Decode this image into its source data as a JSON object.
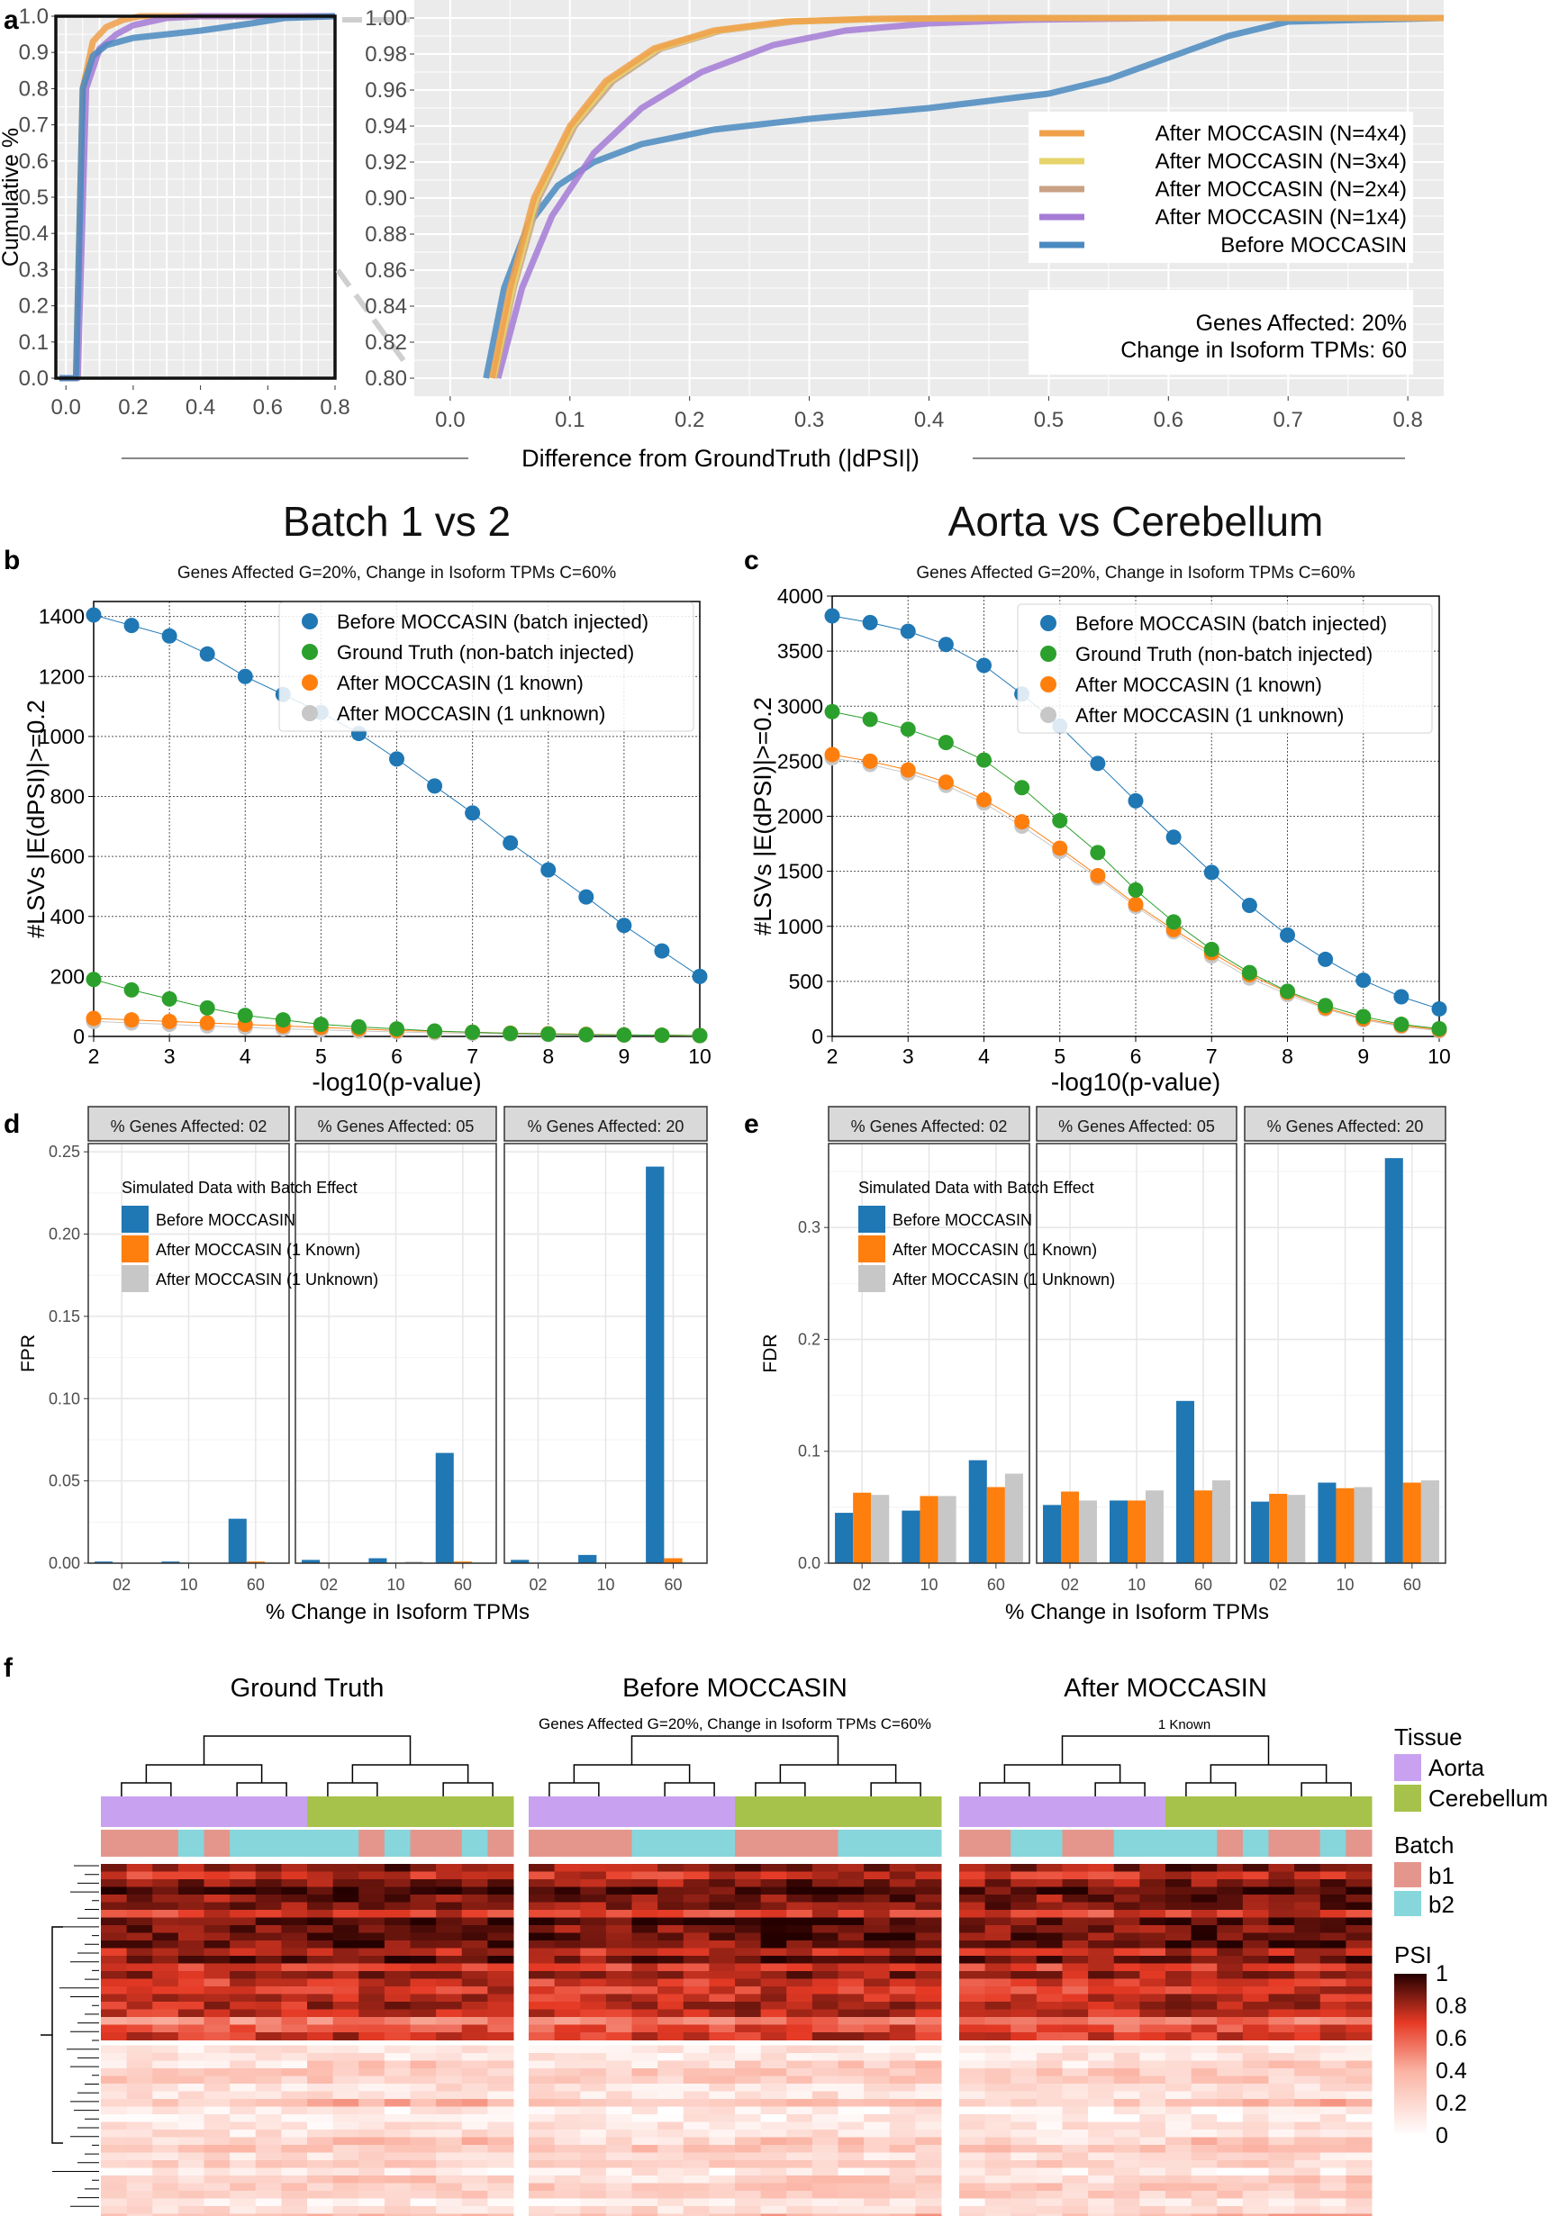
{
  "colors": {
    "before": "#1f77b4",
    "ground": "#2ca02c",
    "known": "#ff7f0e",
    "unknown": "#c7c7c7",
    "n4": "#f0a04a",
    "n3": "#e6d36a",
    "n2": "#c9a285",
    "n1": "#a57bd6",
    "before_cdf": "#4a8ac0",
    "aorta": "#c8a2f0",
    "cerebellum": "#a6c24a",
    "b1": "#e4968c",
    "b2": "#86d6dc"
  },
  "panel_labels": {
    "a": "a",
    "b": "b",
    "c": "c",
    "d": "d",
    "e": "e",
    "f": "f"
  },
  "chart_data": [
    {
      "id": "a-left",
      "type": "line",
      "ylabel": "Cumulative %",
      "xticks": [
        "0.0",
        "0.2",
        "0.4",
        "0.6",
        "0.8"
      ],
      "yticks": [
        "0.0",
        "0.1",
        "0.2",
        "0.3",
        "0.4",
        "0.5",
        "0.6",
        "0.7",
        "0.8",
        "0.9",
        "1.0"
      ],
      "xlim": [
        -0.03,
        0.8
      ],
      "ylim": [
        0,
        1.0
      ],
      "series": [
        {
          "name": "After MOCCASIN (N=4x4)",
          "x": [
            0.03,
            0.05,
            0.08,
            0.12,
            0.17,
            0.22,
            0.3,
            0.4,
            0.8
          ],
          "y": [
            0.0,
            0.8,
            0.93,
            0.97,
            0.99,
            1.0,
            1.0,
            1.0,
            1.0
          ]
        },
        {
          "name": "After MOCCASIN (N=1x4)",
          "x": [
            0.035,
            0.06,
            0.1,
            0.15,
            0.2,
            0.3,
            0.4,
            0.8
          ],
          "y": [
            0.0,
            0.8,
            0.91,
            0.95,
            0.975,
            0.995,
            1.0,
            1.0
          ]
        },
        {
          "name": "Before MOCCASIN",
          "x": [
            0.03,
            0.05,
            0.08,
            0.12,
            0.2,
            0.4,
            0.55,
            0.65,
            0.8
          ],
          "y": [
            0.0,
            0.8,
            0.89,
            0.92,
            0.94,
            0.96,
            0.98,
            0.995,
            1.0
          ]
        }
      ]
    },
    {
      "id": "a-right",
      "type": "line",
      "xlabel": "Difference from GroundTruth (|dPSI|)",
      "xticks": [
        "0.0",
        "0.1",
        "0.2",
        "0.3",
        "0.4",
        "0.5",
        "0.6",
        "0.7",
        "0.8"
      ],
      "yticks": [
        "0.80",
        "0.82",
        "0.84",
        "0.86",
        "0.88",
        "0.90",
        "0.92",
        "0.94",
        "0.96",
        "0.98",
        "1.00"
      ],
      "xlim": [
        -0.03,
        0.83
      ],
      "ylim": [
        0.8,
        1.0
      ],
      "legend": [
        "After MOCCASIN (N=4x4)",
        "After MOCCASIN (N=3x4)",
        "After MOCCASIN (N=2x4)",
        "After MOCCASIN (N=1x4)",
        "Before MOCCASIN"
      ],
      "annotation": [
        "Genes Affected: 20%",
        "Change in Isoform TPMs: 60"
      ],
      "series": [
        {
          "name": "After MOCCASIN (N=4x4)",
          "x": [
            0.035,
            0.05,
            0.07,
            0.1,
            0.13,
            0.17,
            0.22,
            0.28,
            0.35,
            0.45,
            0.83
          ],
          "y": [
            0.8,
            0.85,
            0.9,
            0.94,
            0.965,
            0.983,
            0.993,
            0.998,
            0.9995,
            1.0,
            1.0
          ]
        },
        {
          "name": "After MOCCASIN (N=3x4)",
          "x": [
            0.036,
            0.052,
            0.072,
            0.102,
            0.133,
            0.173,
            0.223,
            0.283,
            0.355,
            0.45,
            0.83
          ],
          "y": [
            0.8,
            0.85,
            0.9,
            0.94,
            0.965,
            0.983,
            0.993,
            0.998,
            0.9995,
            1.0,
            1.0
          ]
        },
        {
          "name": "After MOCCASIN (N=2x4)",
          "x": [
            0.037,
            0.053,
            0.074,
            0.104,
            0.136,
            0.176,
            0.226,
            0.286,
            0.36,
            0.46,
            0.83
          ],
          "y": [
            0.8,
            0.85,
            0.9,
            0.94,
            0.965,
            0.983,
            0.993,
            0.998,
            0.9995,
            1.0,
            1.0
          ]
        },
        {
          "name": "After MOCCASIN (N=1x4)",
          "x": [
            0.04,
            0.06,
            0.085,
            0.12,
            0.16,
            0.21,
            0.27,
            0.33,
            0.4,
            0.48,
            0.6,
            0.83
          ],
          "y": [
            0.8,
            0.85,
            0.89,
            0.925,
            0.95,
            0.97,
            0.985,
            0.993,
            0.997,
            0.999,
            1.0,
            1.0
          ]
        },
        {
          "name": "Before MOCCASIN",
          "x": [
            0.03,
            0.045,
            0.065,
            0.09,
            0.12,
            0.16,
            0.22,
            0.3,
            0.4,
            0.5,
            0.55,
            0.6,
            0.65,
            0.7,
            0.83
          ],
          "y": [
            0.8,
            0.85,
            0.885,
            0.907,
            0.92,
            0.93,
            0.938,
            0.944,
            0.95,
            0.958,
            0.966,
            0.978,
            0.99,
            0.998,
            1.0
          ]
        }
      ]
    },
    {
      "id": "b",
      "type": "line",
      "title": "Batch 1 vs 2",
      "subtitle": "Genes Affected G=20%, Change in Isoform TPMs C=60%",
      "xlabel": "-log10(p-value)",
      "ylabel": "#LSVs |E(dPSI)|>=0.2",
      "xlim": [
        2,
        10
      ],
      "ylim": [
        0,
        1450
      ],
      "xticks": [
        "2",
        "3",
        "4",
        "5",
        "6",
        "7",
        "8",
        "9",
        "10"
      ],
      "yticks": [
        "0",
        "200",
        "400",
        "600",
        "800",
        "1000",
        "1200",
        "1400"
      ],
      "x": [
        2,
        2.5,
        3,
        3.5,
        4,
        4.5,
        5,
        5.5,
        6,
        6.5,
        7,
        7.5,
        8,
        8.5,
        9,
        9.5,
        10
      ],
      "series": [
        {
          "name": "Before MOCCASIN (batch injected)",
          "values": [
            1405,
            1370,
            1335,
            1275,
            1200,
            1140,
            1080,
            1010,
            925,
            835,
            745,
            645,
            555,
            465,
            370,
            285,
            200
          ]
        },
        {
          "name": "Ground Truth (non-batch injected)",
          "values": [
            190,
            155,
            125,
            95,
            70,
            55,
            40,
            32,
            25,
            18,
            14,
            10,
            8,
            6,
            5,
            4,
            3
          ]
        },
        {
          "name": "After MOCCASIN (1 known)",
          "values": [
            60,
            55,
            50,
            45,
            40,
            35,
            30,
            25,
            20,
            17,
            14,
            11,
            9,
            7,
            5,
            4,
            3
          ]
        },
        {
          "name": "After MOCCASIN (1 unknown)",
          "values": [
            50,
            45,
            40,
            35,
            30,
            25,
            22,
            18,
            15,
            12,
            10,
            8,
            6,
            5,
            4,
            3,
            2
          ]
        }
      ]
    },
    {
      "id": "c",
      "type": "line",
      "title": "Aorta vs Cerebellum",
      "subtitle": "Genes Affected G=20%, Change in Isoform TPMs C=60%",
      "xlabel": "-log10(p-value)",
      "ylabel": "#LSVs |E(dPSI)|>=0.2",
      "xlim": [
        2,
        10
      ],
      "ylim": [
        0,
        4000
      ],
      "xticks": [
        "2",
        "3",
        "4",
        "5",
        "6",
        "7",
        "8",
        "9",
        "10"
      ],
      "yticks": [
        "0",
        "500",
        "1000",
        "1500",
        "2000",
        "2500",
        "3000",
        "3500",
        "4000"
      ],
      "x": [
        2,
        2.5,
        3,
        3.5,
        4,
        4.5,
        5,
        5.5,
        6,
        6.5,
        7,
        7.5,
        8,
        8.5,
        9,
        9.5,
        10
      ],
      "series": [
        {
          "name": "Before MOCCASIN (batch injected)",
          "values": [
            3820,
            3760,
            3680,
            3560,
            3370,
            3110,
            2820,
            2480,
            2140,
            1810,
            1490,
            1190,
            920,
            700,
            510,
            360,
            250
          ]
        },
        {
          "name": "Ground Truth (non-batch injected)",
          "values": [
            2950,
            2880,
            2790,
            2670,
            2510,
            2260,
            1960,
            1670,
            1330,
            1040,
            790,
            580,
            410,
            280,
            180,
            110,
            70
          ]
        },
        {
          "name": "After MOCCASIN (1 known)",
          "values": [
            2560,
            2500,
            2420,
            2310,
            2150,
            1950,
            1710,
            1460,
            1200,
            970,
            760,
            560,
            400,
            260,
            160,
            100,
            60
          ]
        },
        {
          "name": "After MOCCASIN (1 unknown)",
          "values": [
            2530,
            2470,
            2390,
            2280,
            2120,
            1910,
            1680,
            1440,
            1180,
            950,
            730,
            530,
            380,
            250,
            150,
            90,
            50
          ]
        }
      ]
    },
    {
      "id": "d",
      "type": "bar",
      "ylabel": "FPR",
      "xlabel": "% Change in Isoform TPMs",
      "facets": [
        "% Genes Affected: 02",
        "% Genes Affected: 05",
        "% Genes Affected: 20"
      ],
      "categories": [
        "02",
        "10",
        "60"
      ],
      "ylim": [
        0,
        0.255
      ],
      "yticks": [
        "0.00",
        "0.05",
        "0.10",
        "0.15",
        "0.20",
        "0.25"
      ],
      "legend_title": "Simulated Data with Batch Effect",
      "series": [
        {
          "name": "Before MOCCASIN",
          "values": [
            [
              0.001,
              0.001,
              0.027
            ],
            [
              0.002,
              0.003,
              0.067
            ],
            [
              0.002,
              0.005,
              0.241
            ]
          ]
        },
        {
          "name": "After MOCCASIN (1 Known)",
          "values": [
            [
              0.0,
              0.0,
              0.001
            ],
            [
              0.0,
              0.0,
              0.001
            ],
            [
              0.0,
              0.0,
              0.003
            ]
          ]
        },
        {
          "name": "After MOCCASIN (1 Unknown)",
          "values": [
            [
              0.0,
              0.0,
              0.0
            ],
            [
              0.0,
              0.001,
              0.0
            ],
            [
              0.0,
              0.0,
              0.0
            ]
          ]
        }
      ]
    },
    {
      "id": "e",
      "type": "bar",
      "ylabel": "FDR",
      "xlabel": "% Change in Isoform TPMs",
      "facets": [
        "% Genes Affected: 02",
        "% Genes Affected: 05",
        "% Genes Affected: 20"
      ],
      "categories": [
        "02",
        "10",
        "60"
      ],
      "ylim": [
        0,
        0.375
      ],
      "yticks": [
        "0.0",
        "0.1",
        "0.2",
        "0.3"
      ],
      "legend_title": "Simulated Data with Batch Effect",
      "series": [
        {
          "name": "Before MOCCASIN",
          "values": [
            [
              0.045,
              0.047,
              0.092
            ],
            [
              0.052,
              0.056,
              0.145
            ],
            [
              0.055,
              0.072,
              0.362
            ]
          ]
        },
        {
          "name": "After MOCCASIN (1 Known)",
          "values": [
            [
              0.063,
              0.06,
              0.068
            ],
            [
              0.064,
              0.056,
              0.065
            ],
            [
              0.062,
              0.067,
              0.072
            ]
          ]
        },
        {
          "name": "After MOCCASIN (1 Unknown)",
          "values": [
            [
              0.061,
              0.06,
              0.08
            ],
            [
              0.056,
              0.065,
              0.074
            ],
            [
              0.061,
              0.068,
              0.074
            ]
          ]
        }
      ]
    },
    {
      "id": "f",
      "type": "heatmap",
      "titles": [
        "Ground Truth",
        "Before MOCCASIN",
        "After MOCCASIN"
      ],
      "subtitle": "Genes Affected G=20%, Change in Isoform TPMs C=60%",
      "note": "1 Known",
      "tissue_row": [
        [
          "Aorta",
          "Aorta",
          "Aorta",
          "Aorta",
          "Aorta",
          "Aorta",
          "Aorta",
          "Aorta",
          "Cerebellum",
          "Cerebellum",
          "Cerebellum",
          "Cerebellum",
          "Cerebellum",
          "Cerebellum",
          "Cerebellum",
          "Cerebellum"
        ],
        [
          "Aorta",
          "Aorta",
          "Aorta",
          "Aorta",
          "Aorta",
          "Aorta",
          "Aorta",
          "Aorta",
          "Cerebellum",
          "Cerebellum",
          "Cerebellum",
          "Cerebellum",
          "Cerebellum",
          "Cerebellum",
          "Cerebellum",
          "Cerebellum"
        ],
        [
          "Aorta",
          "Aorta",
          "Aorta",
          "Aorta",
          "Aorta",
          "Aorta",
          "Aorta",
          "Aorta",
          "Cerebellum",
          "Cerebellum",
          "Cerebellum",
          "Cerebellum",
          "Cerebellum",
          "Cerebellum",
          "Cerebellum",
          "Cerebellum"
        ]
      ],
      "batch_row": [
        [
          "b1",
          "b1",
          "b1",
          "b2",
          "b1",
          "b2",
          "b2",
          "b2",
          "b2",
          "b2",
          "b1",
          "b2",
          "b1",
          "b1",
          "b2",
          "b1"
        ],
        [
          "b1",
          "b1",
          "b1",
          "b1",
          "b2",
          "b2",
          "b2",
          "b2",
          "b1",
          "b1",
          "b1",
          "b1",
          "b2",
          "b2",
          "b2",
          "b2"
        ],
        [
          "b1",
          "b1",
          "b2",
          "b2",
          "b1",
          "b1",
          "b2",
          "b2",
          "b2",
          "b2",
          "b1",
          "b2",
          "b1",
          "b1",
          "b2",
          "b1"
        ]
      ],
      "legend": {
        "tissue_title": "Tissue",
        "tissue": [
          "Aorta",
          "Cerebellum"
        ],
        "batch_title": "Batch",
        "batch": [
          "b1",
          "b2"
        ],
        "psi_title": "PSI",
        "psi_ticks": [
          "1",
          "0.8",
          "0.6",
          "0.4",
          "0.2",
          "0"
        ]
      }
    }
  ]
}
